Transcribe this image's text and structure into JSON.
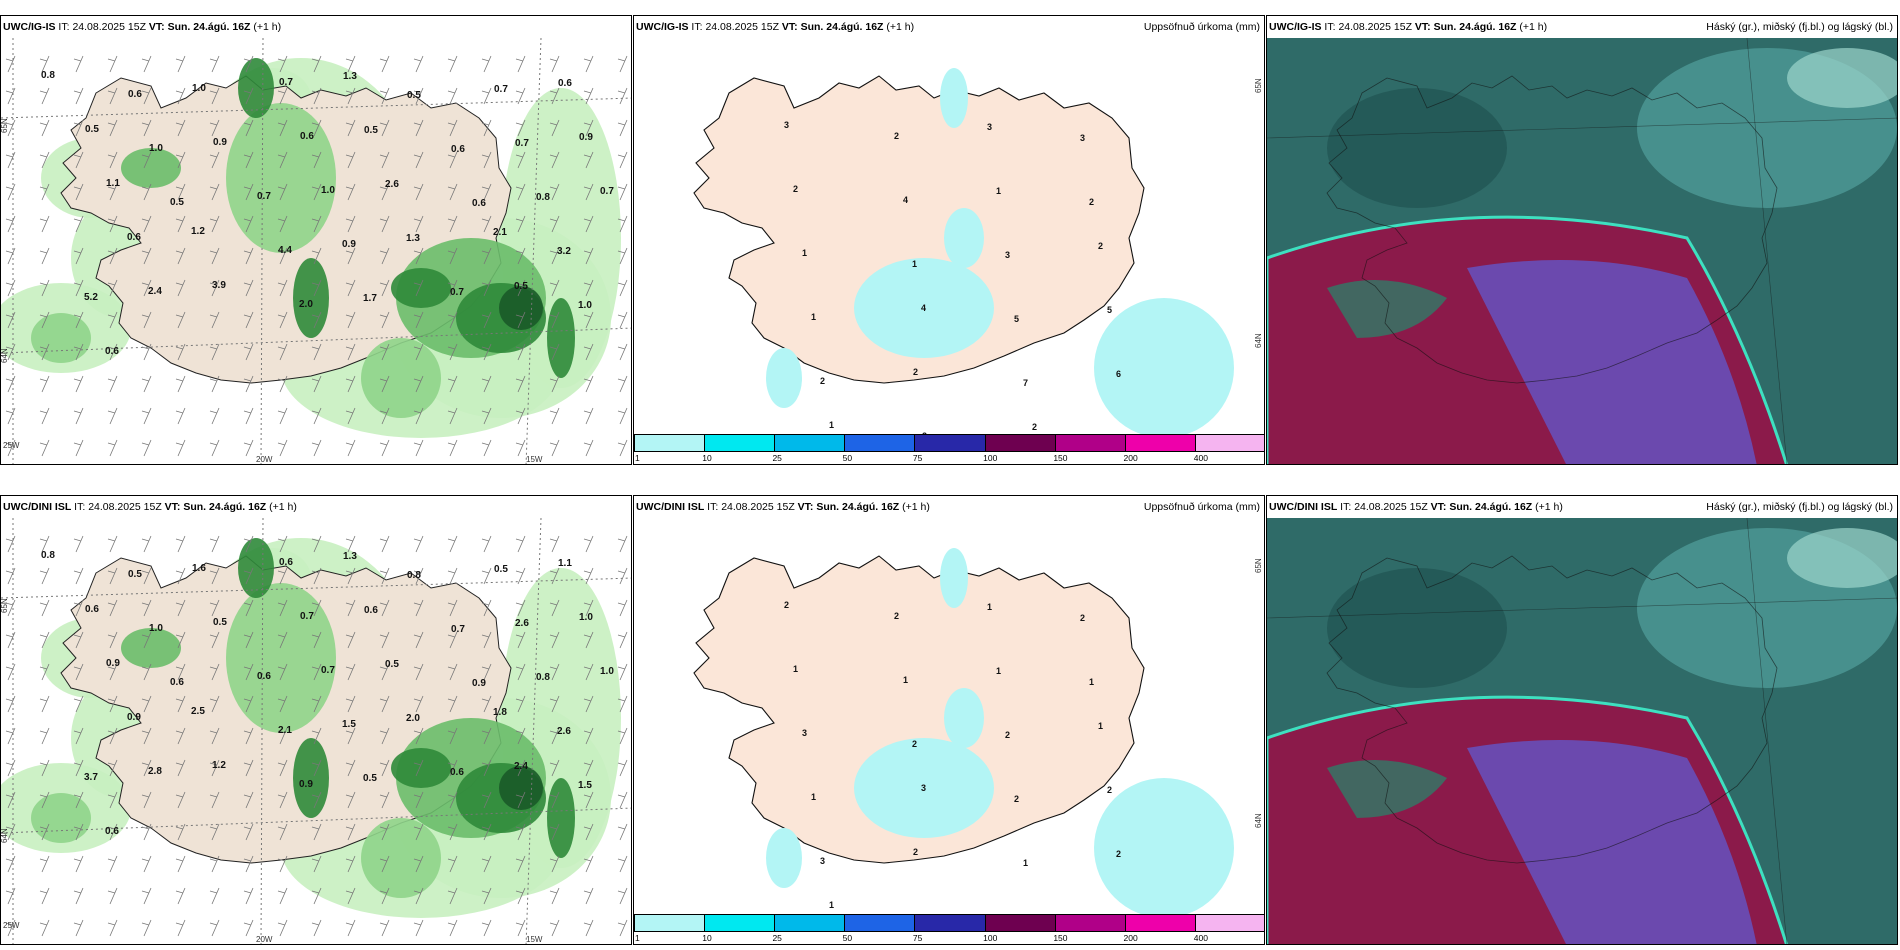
{
  "rows": [
    {
      "model": "UWC/IG-IS",
      "it_label": "IT:",
      "it_value": "24.08.2025 15Z",
      "vt_label": "VT:",
      "vt_value": "Sun. 24.ágú. 16Z",
      "offset": "(+1 h)",
      "panel1_values": [
        "0.8",
        "0.6",
        "1.0",
        "0.7",
        "1.3",
        "0.5",
        "0.7",
        "0.6",
        "0.5",
        "1.0",
        "0.9",
        "0.6",
        "0.5",
        "0.6",
        "0.7",
        "0.9",
        "1.1",
        "0.5",
        "0.7",
        "1.0",
        "2.6",
        "0.6",
        "0.8",
        "0.7",
        "0.6",
        "1.2",
        "4.4",
        "0.9",
        "1.3",
        "2.1",
        "3.2",
        "5.2",
        "2.4",
        "3.9",
        "2.0",
        "1.7",
        "0.7",
        "0.5",
        "1.0",
        "0.6"
      ],
      "panel2_values": [
        "3",
        "2",
        "3",
        "3",
        "2",
        "4",
        "1",
        "2",
        "1",
        "1",
        "3",
        "2",
        "1",
        "4",
        "5",
        "5",
        "2",
        "2",
        "7",
        "6",
        "1",
        "2",
        "2"
      ],
      "lat_labels": [
        "65N",
        "64N"
      ],
      "lon_labels": [
        "25W",
        "20W",
        "15W"
      ],
      "east_lat_labels": [
        "65N",
        "64N"
      ]
    },
    {
      "model": "UWC/DINI ISL",
      "it_label": "IT:",
      "it_value": "24.08.2025 15Z",
      "vt_label": "VT:",
      "vt_value": "Sun. 24.ágú. 16Z",
      "offset": "(+1 h)",
      "panel1_values": [
        "0.8",
        "0.5",
        "1.6",
        "0.6",
        "1.3",
        "0.8",
        "0.5",
        "1.1",
        "0.6",
        "1.0",
        "0.5",
        "0.7",
        "0.6",
        "0.7",
        "2.6",
        "1.0",
        "0.9",
        "0.6",
        "0.6",
        "0.7",
        "0.5",
        "0.9",
        "0.8",
        "1.0",
        "0.9",
        "2.5",
        "2.1",
        "1.5",
        "2.0",
        "1.8",
        "2.6",
        "3.7",
        "2.8",
        "1.2",
        "0.9",
        "0.5",
        "0.6",
        "2.4",
        "1.5",
        "0.6"
      ],
      "panel2_values": [
        "2",
        "2",
        "1",
        "2",
        "1",
        "1",
        "1",
        "1",
        "3",
        "2",
        "2",
        "1",
        "1",
        "3",
        "2",
        "2",
        "3",
        "2",
        "1",
        "2",
        "1"
      ],
      "lat_labels": [
        "65N",
        "64N"
      ],
      "lon_labels": [
        "25W",
        "20W",
        "15W"
      ],
      "east_lat_labels": [
        "65N",
        "64N"
      ]
    }
  ],
  "panel2_title": "Uppsöfnuð úrkoma (mm)",
  "panel3_title": "Háský (gr.), miðský (fj.bl.) og lágský (bl.)",
  "colorbar": {
    "colors": [
      "#b3f5f5",
      "#00e8f0",
      "#00b9ea",
      "#1e64e6",
      "#2828a8",
      "#6e0050",
      "#b00088",
      "#ee00aa",
      "#f5b4f0"
    ],
    "labels": [
      "1",
      "10",
      "25",
      "50",
      "75",
      "100",
      "150",
      "200",
      "400"
    ]
  }
}
